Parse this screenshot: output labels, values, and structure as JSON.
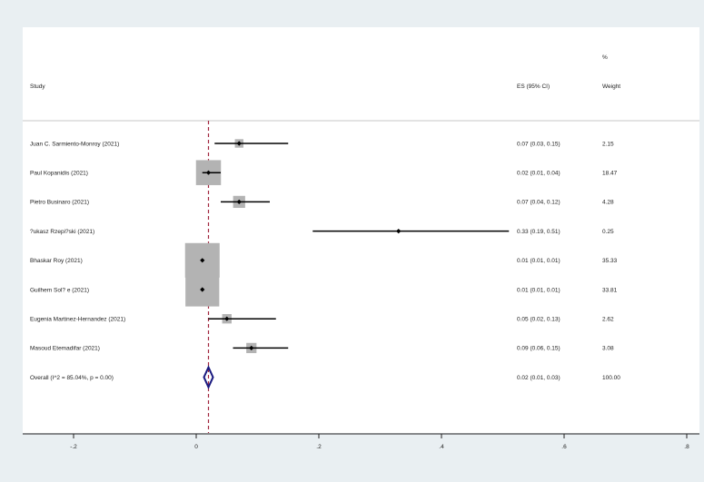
{
  "chart_data": {
    "type": "forest",
    "header": {
      "study": "Study",
      "es": "ES (95% CI)",
      "weight_top": "%",
      "weight": "Weight"
    },
    "studies": [
      {
        "name": "Juan C. Sarmiento-Monroy (2021)",
        "es": 0.07,
        "lo": 0.03,
        "hi": 0.15,
        "es_text": "0.07 (0.03, 0.15)",
        "weight": 2.15,
        "weight_text": "2.15"
      },
      {
        "name": "Paul Kopanidis (2021)",
        "es": 0.02,
        "lo": 0.01,
        "hi": 0.04,
        "es_text": "0.02 (0.01, 0.04)",
        "weight": 18.47,
        "weight_text": "18.47"
      },
      {
        "name": "Pietro Businaro (2021)",
        "es": 0.07,
        "lo": 0.04,
        "hi": 0.12,
        "es_text": "0.07 (0.04, 0.12)",
        "weight": 4.28,
        "weight_text": "4.28"
      },
      {
        "name": "?ukasz Rzepi?ski (2021)",
        "es": 0.33,
        "lo": 0.19,
        "hi": 0.51,
        "es_text": "0.33 (0.19, 0.51)",
        "weight": 0.25,
        "weight_text": "0.25"
      },
      {
        "name": "Bhaskar Roy (2021)",
        "es": 0.01,
        "lo": 0.01,
        "hi": 0.01,
        "es_text": "0.01 (0.01, 0.01)",
        "weight": 35.33,
        "weight_text": "35.33"
      },
      {
        "name": "Guilhem Sol? e (2021)",
        "es": 0.01,
        "lo": 0.01,
        "hi": 0.01,
        "es_text": "0.01 (0.01, 0.01)",
        "weight": 33.81,
        "weight_text": "33.81"
      },
      {
        "name": "Eugenia Martinez-Hernandez (2021)",
        "es": 0.05,
        "lo": 0.02,
        "hi": 0.13,
        "es_text": "0.05 (0.02, 0.13)",
        "weight": 2.62,
        "weight_text": "2.62"
      },
      {
        "name": "Masoud Etemadifar (2021)",
        "es": 0.09,
        "lo": 0.06,
        "hi": 0.15,
        "es_text": "0.09 (0.06, 0.15)",
        "weight": 3.08,
        "weight_text": "3.08"
      }
    ],
    "overall": {
      "name": "Overall  (I^2 = 85.04%, p = 0.00)",
      "es": 0.02,
      "lo": 0.01,
      "hi": 0.03,
      "es_text": "0.02 (0.01, 0.03)",
      "weight_text": "100.00"
    },
    "x_ticks": [
      -0.2,
      0,
      0.2,
      0.4,
      0.6,
      0.8
    ],
    "x_tick_labels": [
      "-.2",
      "0",
      ".2",
      ".4",
      ".6",
      ".8"
    ],
    "xlim": [
      -0.28,
      0.8
    ],
    "reference_line": 0.02,
    "colors": {
      "background": "#e9eff2",
      "panel": "#ffffff",
      "box": "#b3b3b3",
      "ci": "#000000",
      "diamond": "#1a1a80",
      "refline": "#a0253c"
    }
  }
}
